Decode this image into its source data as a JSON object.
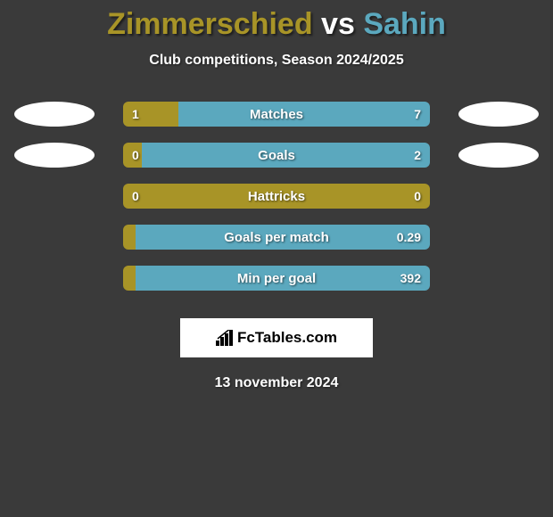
{
  "title_parts": {
    "player1": "Zimmerschied",
    "vs": " vs ",
    "player2": "Sahin"
  },
  "colors": {
    "player1": "#a89427",
    "player2": "#5ba8be",
    "background": "#3a3a3a",
    "white": "#ffffff"
  },
  "subtitle": "Club competitions, Season 2024/2025",
  "brand": "FcTables.com",
  "date": "13 november 2024",
  "stats": [
    {
      "label": "Matches",
      "left_val": "1",
      "right_val": "7",
      "left_pct": 18,
      "right_pct": 82,
      "show_avatars": true
    },
    {
      "label": "Goals",
      "left_val": "0",
      "right_val": "2",
      "left_pct": 6,
      "right_pct": 94,
      "show_avatars": true
    },
    {
      "label": "Hattricks",
      "left_val": "0",
      "right_val": "0",
      "left_pct": 100,
      "right_pct": 0,
      "show_avatars": false
    },
    {
      "label": "Goals per match",
      "left_val": "",
      "right_val": "0.29",
      "left_pct": 4,
      "right_pct": 96,
      "show_avatars": false
    },
    {
      "label": "Min per goal",
      "left_val": "",
      "right_val": "392",
      "left_pct": 4,
      "right_pct": 96,
      "show_avatars": false
    }
  ]
}
